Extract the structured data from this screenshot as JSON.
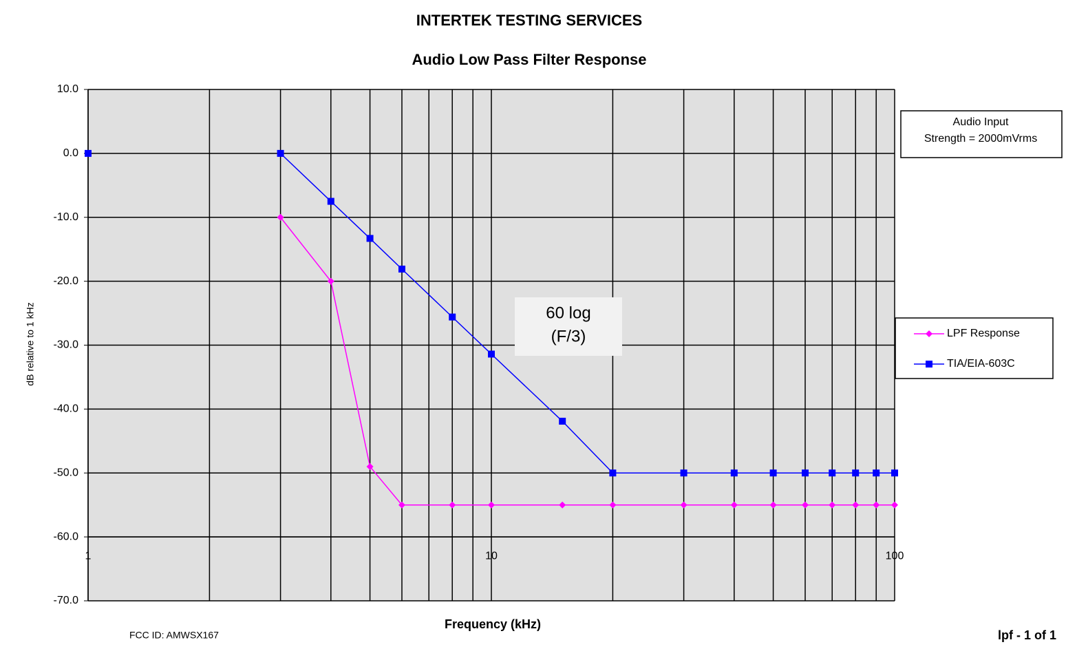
{
  "chart_data": {
    "type": "line",
    "title": "INTERTEK TESTING SERVICES",
    "subtitle": "Audio Low Pass Filter Response",
    "xlabel": "Frequency (kHz)",
    "ylabel": "dB relative to 1 kHz",
    "x": [
      1,
      2,
      3,
      4,
      5,
      6,
      8,
      10,
      15,
      20,
      30,
      40,
      50,
      60,
      70,
      80,
      90,
      100
    ],
    "series": [
      {
        "name": "LPF Response",
        "color": "#ff00ff",
        "marker": "diamond",
        "values": [
          0,
          null,
          -10,
          -20,
          -49,
          -55,
          -55,
          -55,
          -55,
          -55,
          -55,
          -55,
          -55,
          -55,
          -55,
          -55,
          -55,
          -55
        ]
      },
      {
        "name": "TIA/EIA-603C",
        "color": "#0000ff",
        "marker": "square",
        "values": [
          0,
          null,
          0,
          -7.5,
          -13.3,
          -18.1,
          -25.6,
          -31.4,
          -41.9,
          -50,
          -50,
          -50,
          -50,
          -50,
          -50,
          -50,
          -50,
          -50
        ]
      }
    ],
    "xscale": "log",
    "xlim": [
      1,
      100
    ],
    "xticks": [
      1,
      10,
      100
    ],
    "ylim": [
      -70,
      10
    ],
    "yticks": [
      {
        "value": 10,
        "label": "10.0"
      },
      {
        "value": 0,
        "label": "0.0"
      },
      {
        "value": -10,
        "label": "-10.0"
      },
      {
        "value": -20,
        "label": "-20.0"
      },
      {
        "value": -30,
        "label": "-30.0"
      },
      {
        "value": -40,
        "label": "-40.0"
      },
      {
        "value": -50,
        "label": "-50.0"
      },
      {
        "value": -60,
        "label": "-60.0"
      },
      {
        "value": -70,
        "label": "-70.0"
      }
    ],
    "x_axis_crosses": -60,
    "grid": true,
    "minor_grid": true,
    "plot_background": "#e0e0e0",
    "legend": "right",
    "note": [
      "60 log",
      "(F/3)"
    ],
    "input_note": [
      "Audio Input",
      "Strength =  2000mVrms"
    ],
    "footer_left": "FCC ID: AMWSX167",
    "footer_right": "lpf - 1 of 1"
  }
}
